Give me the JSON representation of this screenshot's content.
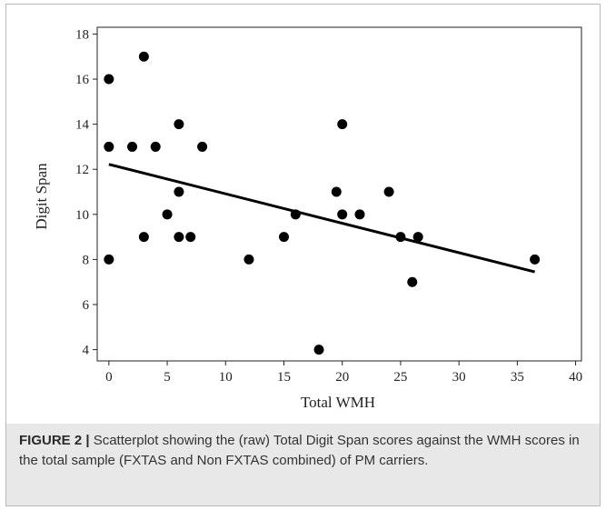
{
  "chart_data": {
    "type": "scatter",
    "xlabel": "Total WMH",
    "ylabel": "Digit Span",
    "xlim": [
      -1,
      40.5
    ],
    "ylim": [
      3.5,
      18.3
    ],
    "x_ticks": [
      0,
      5,
      10,
      15,
      20,
      25,
      30,
      35,
      40
    ],
    "y_ticks": [
      4,
      6,
      8,
      10,
      12,
      14,
      16,
      18
    ],
    "grid": false,
    "points": [
      {
        "x": 0,
        "y": 16
      },
      {
        "x": 0,
        "y": 13
      },
      {
        "x": 0,
        "y": 8
      },
      {
        "x": 2,
        "y": 13
      },
      {
        "x": 3,
        "y": 17
      },
      {
        "x": 3,
        "y": 9
      },
      {
        "x": 4,
        "y": 13
      },
      {
        "x": 5,
        "y": 10
      },
      {
        "x": 6,
        "y": 14
      },
      {
        "x": 6,
        "y": 11
      },
      {
        "x": 6,
        "y": 9
      },
      {
        "x": 7,
        "y": 9
      },
      {
        "x": 8,
        "y": 13
      },
      {
        "x": 12,
        "y": 8
      },
      {
        "x": 15,
        "y": 9
      },
      {
        "x": 16,
        "y": 10
      },
      {
        "x": 18,
        "y": 4
      },
      {
        "x": 19.5,
        "y": 11
      },
      {
        "x": 20,
        "y": 14
      },
      {
        "x": 20,
        "y": 10
      },
      {
        "x": 21.5,
        "y": 10
      },
      {
        "x": 24,
        "y": 11
      },
      {
        "x": 25,
        "y": 9
      },
      {
        "x": 26,
        "y": 7
      },
      {
        "x": 26.5,
        "y": 9
      },
      {
        "x": 36.5,
        "y": 8
      }
    ],
    "regression_line": {
      "x": [
        0,
        36.5
      ],
      "y": [
        12.22,
        7.45
      ]
    }
  },
  "caption": {
    "label": "FIGURE 2 |",
    "text": " Scatterplot showing the (raw) Total Digit Span scores against the WMH scores in the total sample (FXTAS and Non FXTAS combined) of PM carriers."
  },
  "colors": {
    "points": "#000000",
    "axis": "#222222",
    "caption_bg": "#e8e8e8"
  }
}
